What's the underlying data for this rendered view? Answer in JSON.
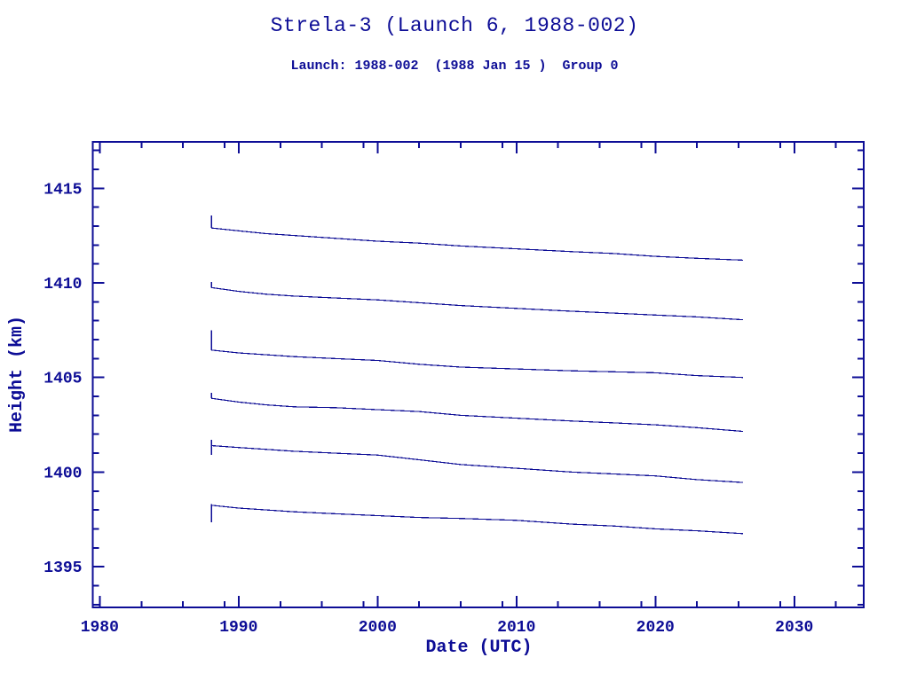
{
  "colors": {
    "ink": "#0d0d96",
    "background": "#ffffff"
  },
  "chart_data": {
    "type": "line",
    "title": "Strela-3 (Launch 6, 1988-002)",
    "subtitle": "Launch: 1988-002  (1988 Jan 15 )  Group 0",
    "xlabel": "Date (UTC)",
    "ylabel": "Height (km)",
    "xlim": [
      1979.5,
      2035.0
    ],
    "ylim": [
      1392.85,
      1417.45
    ],
    "grid": false,
    "legend": "none",
    "x_major_ticks": [
      1980,
      1990,
      2000,
      2010,
      2020,
      2030
    ],
    "x_minor_ticks": [
      1983,
      1986,
      1989,
      1993,
      1996,
      1999,
      2003,
      2006,
      2009,
      2013,
      2016,
      2019,
      2023,
      2026,
      2029,
      2033
    ],
    "y_major_ticks": [
      1395,
      1400,
      1405,
      1410,
      1415
    ],
    "y_minor_ticks": [
      1393,
      1394,
      1396,
      1397,
      1398,
      1399,
      1401,
      1402,
      1403,
      1404,
      1406,
      1407,
      1408,
      1409,
      1411,
      1412,
      1413,
      1414,
      1416,
      1417
    ],
    "x": [
      1988.04,
      1990,
      1992,
      1994,
      1997,
      2000,
      2003,
      2006,
      2010,
      2014,
      2017,
      2020,
      2023,
      2026.3
    ],
    "series": [
      {
        "name": "series-1",
        "start_tick": [
          1413.55,
          1412.9
        ],
        "y": [
          1412.9,
          1412.75,
          1412.6,
          1412.5,
          1412.35,
          1412.2,
          1412.1,
          1411.95,
          1411.8,
          1411.65,
          1411.55,
          1411.4,
          1411.3,
          1411.2
        ]
      },
      {
        "name": "series-2",
        "start_tick": [
          1410.05,
          1409.75
        ],
        "y": [
          1409.75,
          1409.55,
          1409.4,
          1409.3,
          1409.2,
          1409.1,
          1408.95,
          1408.8,
          1408.65,
          1408.5,
          1408.4,
          1408.3,
          1408.2,
          1408.05
        ]
      },
      {
        "name": "series-3",
        "start_tick": [
          1407.5,
          1406.45
        ],
        "y": [
          1406.45,
          1406.3,
          1406.2,
          1406.1,
          1406.0,
          1405.9,
          1405.7,
          1405.55,
          1405.45,
          1405.35,
          1405.3,
          1405.25,
          1405.1,
          1405.0
        ]
      },
      {
        "name": "series-4",
        "start_tick": [
          1404.2,
          1403.9
        ],
        "y": [
          1403.9,
          1403.7,
          1403.55,
          1403.45,
          1403.4,
          1403.3,
          1403.2,
          1403.0,
          1402.85,
          1402.7,
          1402.6,
          1402.5,
          1402.35,
          1402.15
        ]
      },
      {
        "name": "series-5",
        "start_tick": [
          1401.7,
          1400.9
        ],
        "y": [
          1401.4,
          1401.3,
          1401.2,
          1401.1,
          1401.0,
          1400.9,
          1400.65,
          1400.4,
          1400.2,
          1400.0,
          1399.9,
          1399.8,
          1399.6,
          1399.45
        ]
      },
      {
        "name": "series-6",
        "start_tick": [
          1398.3,
          1397.35
        ],
        "y": [
          1398.25,
          1398.1,
          1398.0,
          1397.9,
          1397.8,
          1397.7,
          1397.6,
          1397.55,
          1397.45,
          1397.25,
          1397.15,
          1397.0,
          1396.9,
          1396.75
        ]
      }
    ]
  }
}
